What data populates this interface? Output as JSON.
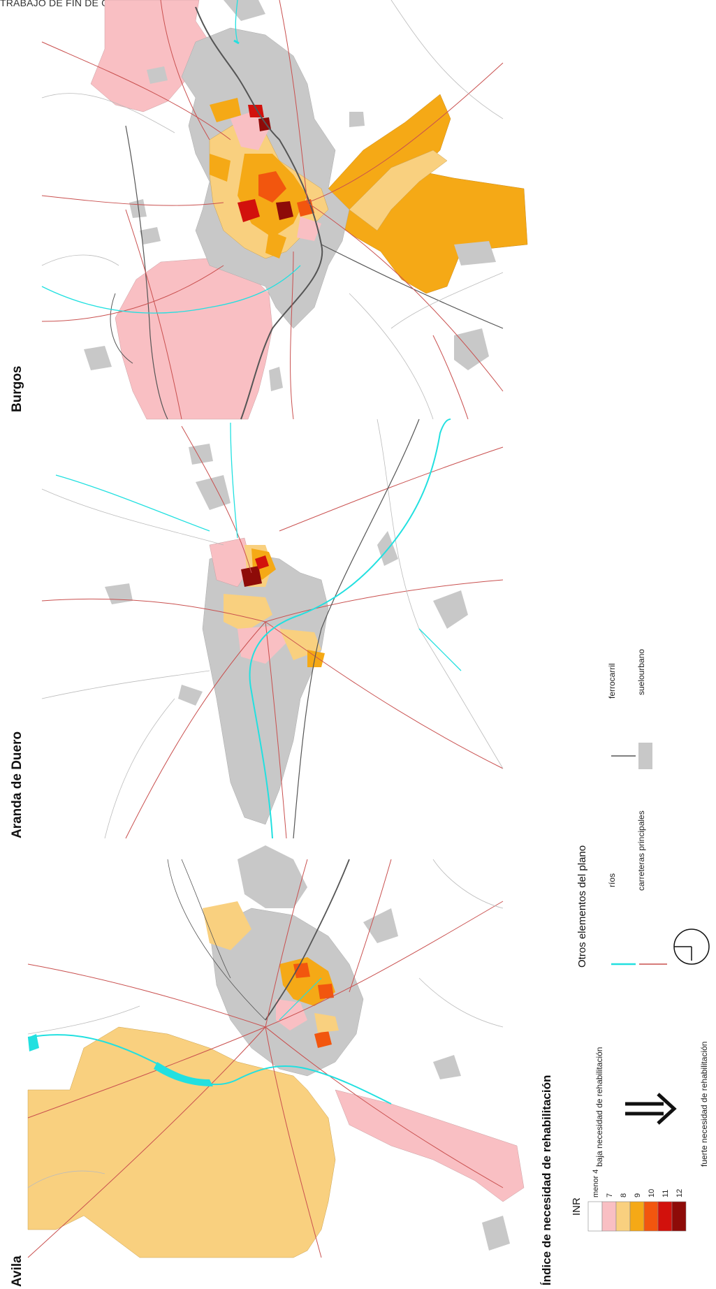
{
  "header": {
    "text": "TRABAJO DE FIN DE GRADO"
  },
  "cities": {
    "burgos": "Burgos",
    "aranda": "Aranda de Duero",
    "avila": "Avila"
  },
  "legend": {
    "title": "Índice de necesidad de rehabilitación",
    "inr_label": "INR",
    "low_label": "baja necesidad de rehabilitación",
    "high_label": "fuerte necesidad de rehabilitación",
    "classes": [
      {
        "label": "menor 4",
        "color": "#ffffff"
      },
      {
        "label": "7",
        "color": "#f9bfc3"
      },
      {
        "label": "8",
        "color": "#f9d07f"
      },
      {
        "label": "9",
        "color": "#f5a916"
      },
      {
        "label": "10",
        "color": "#f2560e"
      },
      {
        "label": "11",
        "color": "#d2110c"
      },
      {
        "label": "12",
        "color": "#8e0b08"
      }
    ],
    "other_title": "Otros elementos del plano",
    "rivers_label": "ríos",
    "roads_label": "carreteras principales",
    "rail_label": "ferrocarril",
    "urban_label": "suelourbano",
    "colors": {
      "river": "#22e0e0",
      "road": "#c9504f",
      "rail": "#555555",
      "urban": "#c8c8c8"
    },
    "north_arrow_icon": "north-arrow-icon",
    "big_arrow_icon": "double-arrow-icon"
  }
}
